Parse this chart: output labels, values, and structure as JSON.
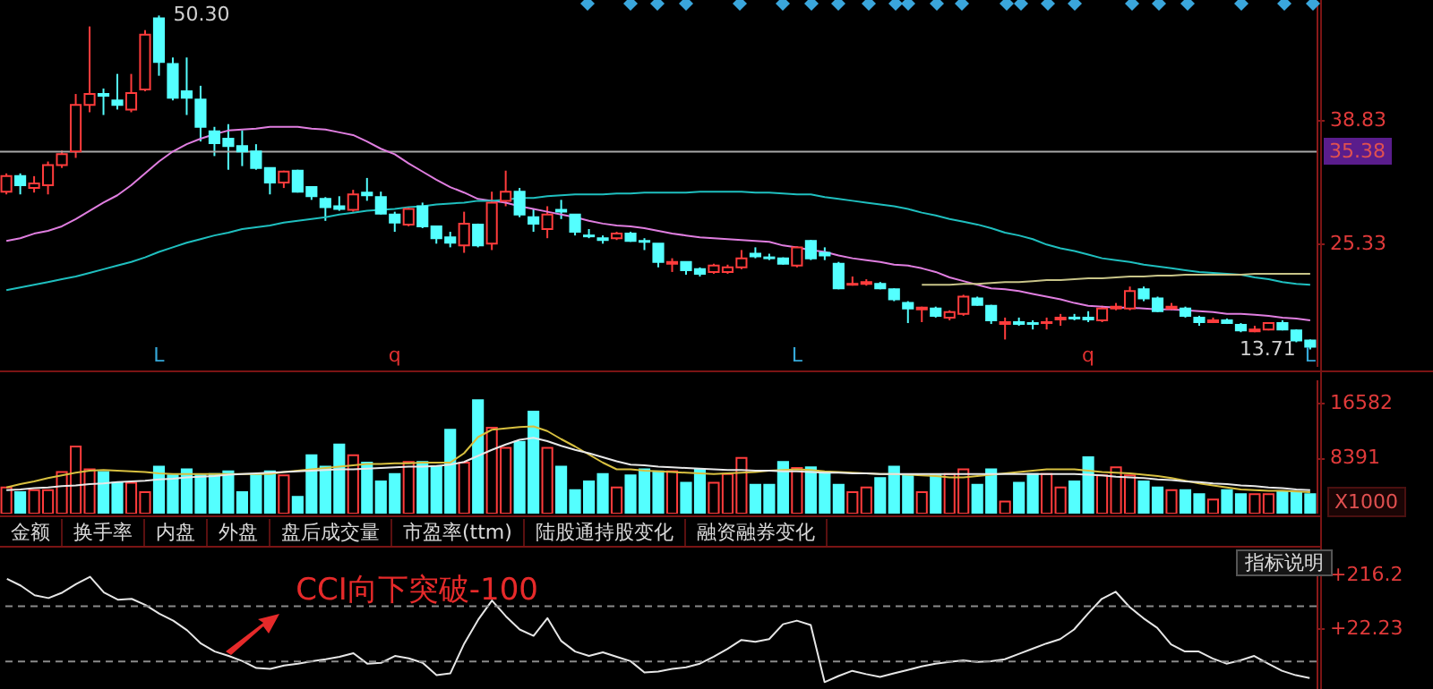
{
  "chart_data": [
    {
      "type": "candlestick",
      "ylim": [
        11.8,
        52.0
      ],
      "yticks": [
        25.33,
        38.83
      ],
      "tick_labels": "y",
      "categories": [
        null,
        null,
        null,
        null,
        null,
        null,
        null,
        null,
        null,
        null,
        null,
        null,
        null,
        null,
        null,
        null,
        null,
        null,
        null,
        null,
        null,
        null,
        null,
        null,
        null,
        null,
        null,
        null,
        null,
        null,
        null,
        null,
        null,
        null,
        null,
        null,
        null,
        null,
        null,
        null,
        null,
        null,
        null,
        null,
        null,
        null,
        null,
        null,
        null,
        null,
        null,
        null,
        null,
        null,
        null,
        null,
        null,
        null,
        null,
        null,
        null,
        null,
        null,
        null,
        null,
        null,
        null,
        null,
        null,
        null,
        null,
        null,
        null,
        null,
        null,
        null,
        null,
        null,
        null,
        null,
        null,
        null,
        null,
        null,
        null,
        null,
        null,
        null,
        null,
        null,
        null,
        null,
        null,
        null,
        null
      ],
      "ohlc": [
        [
          31.0,
          33.0,
          30.7,
          32.7
        ],
        [
          32.7,
          33.0,
          30.7,
          31.7
        ],
        [
          31.4,
          32.7,
          30.9,
          31.9
        ],
        [
          31.7,
          34.3,
          30.7,
          33.9
        ],
        [
          33.9,
          35.5,
          33.6,
          35.1
        ],
        [
          35.4,
          41.7,
          34.7,
          40.5
        ],
        [
          40.5,
          49.1,
          39.7,
          41.7
        ],
        [
          41.7,
          42.3,
          39.4,
          41.5
        ],
        [
          41.0,
          43.9,
          40.0,
          40.5
        ],
        [
          40.0,
          43.9,
          39.7,
          41.8
        ],
        [
          42.2,
          48.7,
          42.0,
          48.2
        ],
        [
          50.0,
          50.3,
          43.7,
          45.2
        ],
        [
          45.0,
          45.7,
          41.0,
          41.3
        ],
        [
          42.0,
          45.7,
          39.4,
          41.3
        ],
        [
          41.1,
          42.6,
          36.5,
          38.1
        ],
        [
          37.6,
          38.1,
          34.9,
          36.3
        ],
        [
          36.8,
          38.4,
          33.4,
          36.0
        ],
        [
          36.0,
          37.7,
          33.8,
          35.4
        ],
        [
          35.4,
          36.2,
          33.4,
          33.6
        ],
        [
          33.6,
          33.6,
          30.7,
          32.0
        ],
        [
          32.0,
          33.3,
          31.4,
          33.2
        ],
        [
          33.3,
          33.4,
          30.9,
          31.0
        ],
        [
          31.5,
          31.5,
          30.1,
          30.5
        ],
        [
          30.2,
          30.4,
          27.8,
          29.3
        ],
        [
          29.4,
          30.5,
          28.9,
          29.1
        ],
        [
          29.0,
          31.2,
          28.8,
          30.7
        ],
        [
          30.9,
          32.5,
          30.0,
          30.6
        ],
        [
          30.4,
          31.0,
          28.5,
          28.6
        ],
        [
          28.5,
          28.8,
          26.6,
          27.6
        ],
        [
          27.4,
          29.3,
          27.2,
          29.1
        ],
        [
          29.4,
          29.8,
          27.0,
          27.2
        ],
        [
          27.2,
          27.2,
          25.3,
          25.9
        ],
        [
          26.0,
          26.6,
          24.9,
          25.4
        ],
        [
          25.1,
          28.8,
          24.3,
          27.5
        ],
        [
          27.4,
          27.5,
          24.9,
          25.1
        ],
        [
          25.3,
          31.0,
          24.6,
          29.8
        ],
        [
          30.0,
          33.3,
          29.4,
          31.0
        ],
        [
          31.0,
          31.4,
          28.2,
          28.5
        ],
        [
          28.2,
          29.1,
          26.6,
          27.5
        ],
        [
          26.9,
          29.4,
          25.9,
          28.5
        ],
        [
          29.0,
          30.1,
          28.0,
          28.8
        ],
        [
          28.5,
          28.5,
          26.2,
          26.6
        ],
        [
          26.2,
          26.9,
          25.9,
          26.1
        ],
        [
          25.9,
          26.2,
          25.3,
          25.7
        ],
        [
          25.9,
          26.6,
          25.7,
          26.4
        ],
        [
          26.4,
          26.6,
          25.5,
          25.6
        ],
        [
          25.6,
          25.9,
          24.6,
          25.5
        ],
        [
          25.3,
          25.3,
          22.7,
          23.3
        ],
        [
          23.1,
          23.7,
          22.2,
          23.3
        ],
        [
          23.3,
          23.3,
          21.9,
          22.4
        ],
        [
          22.5,
          22.7,
          21.7,
          22.0
        ],
        [
          22.2,
          23.1,
          22.0,
          22.9
        ],
        [
          22.2,
          23.0,
          22.0,
          22.7
        ],
        [
          22.7,
          24.6,
          22.5,
          23.7
        ],
        [
          24.2,
          24.9,
          23.7,
          23.9
        ],
        [
          23.8,
          24.2,
          23.5,
          23.7
        ],
        [
          23.7,
          23.8,
          23.0,
          23.1
        ],
        [
          22.9,
          25.0,
          22.7,
          24.9
        ],
        [
          25.6,
          25.7,
          23.5,
          23.7
        ],
        [
          24.3,
          24.9,
          23.5,
          24.0
        ],
        [
          23.1,
          23.3,
          20.3,
          20.4
        ],
        [
          20.8,
          21.7,
          20.7,
          20.9
        ],
        [
          20.9,
          21.4,
          20.7,
          21.1
        ],
        [
          20.9,
          21.1,
          20.3,
          20.4
        ],
        [
          20.3,
          20.4,
          19.0,
          19.2
        ],
        [
          18.8,
          19.0,
          16.6,
          18.2
        ],
        [
          18.1,
          18.4,
          16.7,
          18.3
        ],
        [
          18.2,
          18.4,
          17.2,
          17.4
        ],
        [
          17.2,
          18.0,
          16.9,
          17.8
        ],
        [
          17.6,
          19.7,
          17.4,
          19.5
        ],
        [
          19.3,
          19.5,
          18.5,
          18.6
        ],
        [
          18.5,
          18.6,
          16.5,
          16.9
        ],
        [
          16.5,
          17.2,
          14.8,
          16.7
        ],
        [
          16.7,
          17.2,
          16.3,
          16.5
        ],
        [
          16.6,
          16.9,
          15.9,
          16.5
        ],
        [
          16.6,
          17.2,
          15.9,
          16.7
        ],
        [
          17.0,
          17.6,
          16.3,
          17.2
        ],
        [
          17.2,
          17.6,
          16.9,
          17.1
        ],
        [
          17.2,
          17.9,
          16.7,
          17.0
        ],
        [
          16.9,
          18.5,
          16.7,
          18.2
        ],
        [
          18.2,
          18.8,
          18.0,
          18.4
        ],
        [
          18.2,
          20.6,
          18.0,
          20.1
        ],
        [
          20.3,
          20.6,
          19.0,
          19.3
        ],
        [
          19.3,
          19.5,
          17.8,
          17.9
        ],
        [
          18.2,
          18.8,
          18.0,
          18.4
        ],
        [
          18.2,
          18.4,
          17.2,
          17.4
        ],
        [
          17.2,
          17.4,
          16.3,
          16.7
        ],
        [
          16.7,
          17.2,
          16.6,
          16.9
        ],
        [
          16.9,
          17.1,
          16.5,
          16.6
        ],
        [
          16.4,
          16.6,
          15.6,
          15.8
        ],
        [
          15.7,
          16.3,
          15.6,
          15.9
        ],
        [
          15.9,
          16.7,
          15.8,
          16.6
        ],
        [
          16.6,
          16.9,
          15.8,
          15.9
        ],
        [
          15.8,
          15.9,
          14.5,
          14.7
        ],
        [
          14.7,
          14.8,
          13.71,
          14.0
        ]
      ],
      "colors": [
        "#ff3c3c",
        "#54ffff",
        "#ff3c3c",
        "#ff3c3c",
        "#ff3c3c",
        "#ff3c3c",
        "#ff3c3c",
        "#54ffff",
        "#54ffff",
        "#ff3c3c",
        "#ff3c3c",
        "#54ffff",
        "#54ffff",
        "#54ffff",
        "#54ffff",
        "#54ffff",
        "#54ffff",
        "#54ffff",
        "#54ffff",
        "#54ffff",
        "#ff3c3c",
        "#54ffff",
        "#54ffff",
        "#54ffff",
        "#54ffff",
        "#ff3c3c",
        "#54ffff",
        "#54ffff",
        "#54ffff",
        "#ff3c3c",
        "#54ffff",
        "#54ffff",
        "#54ffff",
        "#ff3c3c",
        "#54ffff",
        "#ff3c3c",
        "#ff3c3c",
        "#54ffff",
        "#54ffff",
        "#ff3c3c",
        "#54ffff",
        "#54ffff",
        "#54ffff",
        "#54ffff",
        "#ff3c3c",
        "#54ffff",
        "#54ffff",
        "#54ffff",
        "#ff3c3c",
        "#54ffff",
        "#54ffff",
        "#ff3c3c",
        "#ff3c3c",
        "#ff3c3c",
        "#54ffff",
        "#54ffff",
        "#54ffff",
        "#ff3c3c",
        "#54ffff",
        "#54ffff",
        "#54ffff",
        "#ff3c3c",
        "#ff3c3c",
        "#54ffff",
        "#54ffff",
        "#54ffff",
        "#ff3c3c",
        "#54ffff",
        "#ff3c3c",
        "#ff3c3c",
        "#54ffff",
        "#54ffff",
        "#ff3c3c",
        "#54ffff",
        "#54ffff",
        "#ff3c3c",
        "#ff3c3c",
        "#54ffff",
        "#54ffff",
        "#ff3c3c",
        "#ff3c3c",
        "#ff3c3c",
        "#54ffff",
        "#54ffff",
        "#ff3c3c",
        "#54ffff",
        "#54ffff",
        "#ff3c3c",
        "#54ffff",
        "#54ffff",
        "#ff3c3c",
        "#ff3c3c",
        "#54ffff",
        "#54ffff",
        "#54ffff"
      ],
      "series": [
        {
          "type": "line",
          "color": "#e07ee0",
          "values": [
            25.6,
            25.9,
            26.4,
            26.7,
            27.2,
            28.0,
            28.9,
            29.8,
            30.6,
            31.7,
            33.0,
            34.3,
            35.4,
            36.2,
            36.8,
            37.3,
            37.7,
            37.8,
            37.9,
            38.1,
            38.1,
            38.1,
            37.9,
            37.8,
            37.5,
            37.2,
            36.5,
            35.7,
            35.1,
            34.1,
            33.2,
            32.3,
            31.5,
            30.9,
            30.2,
            30.0,
            29.8,
            29.4,
            29.1,
            28.8,
            28.5,
            28.2,
            27.8,
            27.5,
            27.3,
            27.2,
            27.0,
            26.7,
            26.4,
            26.2,
            26.0,
            25.9,
            25.8,
            25.7,
            25.6,
            25.5,
            25.1,
            24.9,
            24.6,
            24.4,
            24.0,
            23.7,
            23.5,
            23.3,
            23.0,
            22.9,
            22.6,
            22.2,
            21.6,
            21.2,
            20.8,
            20.4,
            20.3,
            20.1,
            19.8,
            19.5,
            19.2,
            18.8,
            18.5,
            18.4,
            18.3,
            18.3,
            18.2,
            18.1,
            18.1,
            18.0,
            17.9,
            17.8,
            17.6,
            17.6,
            17.5,
            17.4,
            17.2,
            17.1,
            16.9
          ]
        },
        {
          "type": "line",
          "color": "#1fbfbf",
          "values": [
            20.2,
            20.5,
            20.8,
            21.1,
            21.4,
            21.7,
            22.1,
            22.5,
            22.9,
            23.3,
            23.8,
            24.4,
            24.9,
            25.4,
            25.8,
            26.2,
            26.5,
            26.9,
            27.1,
            27.3,
            27.6,
            27.8,
            28.0,
            28.2,
            28.5,
            28.7,
            28.9,
            29.0,
            29.1,
            29.3,
            29.4,
            29.6,
            29.7,
            29.8,
            30.0,
            30.0,
            30.1,
            30.3,
            30.3,
            30.5,
            30.6,
            30.7,
            30.7,
            30.7,
            30.8,
            30.8,
            30.9,
            30.9,
            30.9,
            30.9,
            31.0,
            31.0,
            31.0,
            31.0,
            30.9,
            30.9,
            30.8,
            30.7,
            30.7,
            30.4,
            30.2,
            30.0,
            29.8,
            29.6,
            29.4,
            29.1,
            28.7,
            28.4,
            28.0,
            27.7,
            27.4,
            27.0,
            26.5,
            26.2,
            25.8,
            25.2,
            24.8,
            24.5,
            24.1,
            23.7,
            23.5,
            23.3,
            23.0,
            22.8,
            22.6,
            22.4,
            22.2,
            22.1,
            22.0,
            21.9,
            21.6,
            21.4,
            21.1,
            20.9,
            20.8
          ]
        },
        {
          "type": "line",
          "color": "#c8c488",
          "values": [
            null,
            null,
            null,
            null,
            null,
            null,
            null,
            null,
            null,
            null,
            null,
            null,
            null,
            null,
            null,
            null,
            null,
            null,
            null,
            null,
            null,
            null,
            null,
            null,
            null,
            null,
            null,
            null,
            null,
            null,
            null,
            null,
            null,
            null,
            null,
            null,
            null,
            null,
            null,
            null,
            null,
            null,
            null,
            null,
            null,
            null,
            null,
            null,
            null,
            null,
            null,
            null,
            null,
            null,
            null,
            null,
            null,
            null,
            null,
            null,
            null,
            null,
            null,
            null,
            null,
            null,
            20.8,
            20.8,
            20.8,
            20.9,
            20.9,
            21.0,
            21.1,
            21.1,
            21.2,
            21.3,
            21.3,
            21.4,
            21.5,
            21.5,
            21.6,
            21.7,
            21.7,
            21.8,
            21.8,
            21.9,
            21.9,
            21.9,
            21.9,
            21.9,
            22.0,
            22.0,
            22.0,
            22.0,
            22.0
          ]
        }
      ],
      "ref_lines": [
        {
          "axis": "y",
          "value": 35.38,
          "label": "35.38",
          "color": "#a8a8a8"
        }
      ],
      "annotations": [
        "50.30",
        "13.71",
        "L",
        "q",
        "L",
        "q",
        "L"
      ]
    },
    {
      "type": "bar",
      "ylim": [
        0,
        20000
      ],
      "yticks": [
        8391,
        16582
      ],
      "ylabel": "X1000",
      "tick_labels": "y",
      "categories": [
        null,
        null,
        null,
        null,
        null,
        null,
        null,
        null,
        null,
        null,
        null,
        null,
        null,
        null,
        null,
        null,
        null,
        null,
        null,
        null,
        null,
        null,
        null,
        null,
        null,
        null,
        null,
        null,
        null,
        null,
        null,
        null,
        null,
        null,
        null,
        null,
        null,
        null,
        null,
        null,
        null,
        null,
        null,
        null,
        null,
        null,
        null,
        null,
        null,
        null,
        null,
        null,
        null,
        null,
        null,
        null,
        null,
        null,
        null,
        null,
        null,
        null,
        null,
        null,
        null,
        null,
        null,
        null,
        null,
        null,
        null,
        null,
        null,
        null,
        null,
        null,
        null,
        null,
        null,
        null,
        null,
        null,
        null,
        null,
        null,
        null,
        null,
        null,
        null,
        null,
        null,
        null,
        null,
        null,
        null
      ],
      "values": [
        3900,
        3200,
        3500,
        3500,
        6200,
        10000,
        6600,
        6200,
        4600,
        4600,
        3200,
        7000,
        5700,
        6600,
        5700,
        5900,
        6300,
        3200,
        5900,
        6300,
        5700,
        2500,
        8700,
        7000,
        10300,
        8700,
        7600,
        4800,
        5900,
        7700,
        7700,
        7000,
        12500,
        7600,
        16900,
        12800,
        9800,
        10700,
        15200,
        9800,
        7000,
        3500,
        4800,
        5900,
        3900,
        5700,
        6600,
        6300,
        6300,
        4600,
        6600,
        4600,
        5900,
        8300,
        4300,
        4300,
        7700,
        6800,
        6900,
        6200,
        4300,
        3200,
        3900,
        5300,
        7000,
        5700,
        3200,
        5700,
        5900,
        6600,
        4300,
        6600,
        1800,
        4600,
        5900,
        5900,
        3900,
        4800,
        8400,
        5700,
        6900,
        5700,
        4800,
        3900,
        3500,
        3500,
        2900,
        2100,
        3500,
        2900,
        2900,
        2900,
        3200,
        3200,
        2900
      ],
      "colors": [
        "#ff3c3c",
        "#54ffff",
        "#ff3c3c",
        "#ff3c3c",
        "#ff3c3c",
        "#ff3c3c",
        "#ff3c3c",
        "#54ffff",
        "#54ffff",
        "#ff3c3c",
        "#ff3c3c",
        "#54ffff",
        "#54ffff",
        "#54ffff",
        "#54ffff",
        "#54ffff",
        "#54ffff",
        "#54ffff",
        "#54ffff",
        "#54ffff",
        "#ff3c3c",
        "#54ffff",
        "#54ffff",
        "#54ffff",
        "#54ffff",
        "#ff3c3c",
        "#54ffff",
        "#54ffff",
        "#54ffff",
        "#ff3c3c",
        "#54ffff",
        "#54ffff",
        "#54ffff",
        "#ff3c3c",
        "#54ffff",
        "#ff3c3c",
        "#ff3c3c",
        "#54ffff",
        "#54ffff",
        "#ff3c3c",
        "#54ffff",
        "#54ffff",
        "#54ffff",
        "#54ffff",
        "#ff3c3c",
        "#54ffff",
        "#54ffff",
        "#54ffff",
        "#ff3c3c",
        "#54ffff",
        "#54ffff",
        "#ff3c3c",
        "#ff3c3c",
        "#ff3c3c",
        "#54ffff",
        "#54ffff",
        "#54ffff",
        "#ff3c3c",
        "#54ffff",
        "#54ffff",
        "#54ffff",
        "#ff3c3c",
        "#ff3c3c",
        "#54ffff",
        "#54ffff",
        "#54ffff",
        "#ff3c3c",
        "#54ffff",
        "#ff3c3c",
        "#ff3c3c",
        "#54ffff",
        "#54ffff",
        "#ff3c3c",
        "#54ffff",
        "#54ffff",
        "#ff3c3c",
        "#ff3c3c",
        "#54ffff",
        "#54ffff",
        "#ff3c3c",
        "#ff3c3c",
        "#ff3c3c",
        "#54ffff",
        "#54ffff",
        "#ff3c3c",
        "#54ffff",
        "#54ffff",
        "#ff3c3c",
        "#54ffff",
        "#54ffff",
        "#ff3c3c",
        "#ff3c3c",
        "#54ffff",
        "#54ffff",
        "#54ffff"
      ],
      "series": [
        {
          "type": "line",
          "color": "#d8c040",
          "values": [
            3900,
            4400,
            4800,
            5300,
            5700,
            6100,
            6400,
            6500,
            6400,
            6300,
            6200,
            6000,
            5900,
            5900,
            5900,
            5900,
            5900,
            5900,
            5900,
            5900,
            6200,
            6400,
            6600,
            6800,
            7000,
            7200,
            7400,
            7400,
            7500,
            7500,
            7600,
            7600,
            7600,
            9000,
            11400,
            12500,
            12700,
            12900,
            13000,
            12300,
            11100,
            10000,
            8800,
            7600,
            6600,
            6600,
            6400,
            6300,
            6200,
            6100,
            6000,
            5900,
            6000,
            6100,
            6200,
            6400,
            6500,
            6600,
            6500,
            6300,
            6200,
            6100,
            6000,
            5900,
            5900,
            5800,
            5700,
            5600,
            5400,
            5400,
            5600,
            5800,
            6000,
            6200,
            6400,
            6600,
            6600,
            6600,
            6400,
            6200,
            6100,
            6000,
            5800,
            5600,
            5300,
            4900,
            4500,
            4200,
            3900,
            3600,
            3500,
            3400,
            3400,
            3300,
            3200
          ]
        },
        {
          "type": "line",
          "color": "#e8e8e8",
          "values": [
            3500,
            3600,
            3800,
            3900,
            4100,
            4200,
            4400,
            4500,
            4700,
            4800,
            4900,
            5100,
            5200,
            5400,
            5500,
            5600,
            5800,
            5900,
            6000,
            6100,
            6200,
            6300,
            6400,
            6500,
            6600,
            6600,
            6700,
            6800,
            6900,
            7000,
            7000,
            7100,
            7300,
            7700,
            8600,
            9500,
            10300,
            11000,
            11300,
            10800,
            10100,
            9500,
            9000,
            8400,
            7800,
            7300,
            7200,
            7000,
            6900,
            6800,
            6700,
            6600,
            6500,
            6500,
            6400,
            6400,
            6300,
            6300,
            6200,
            6100,
            6100,
            6000,
            6000,
            5900,
            5900,
            5900,
            5900,
            5900,
            5900,
            5900,
            5900,
            5900,
            5900,
            5900,
            5900,
            5900,
            5900,
            5900,
            5800,
            5700,
            5500,
            5400,
            5300,
            5100,
            5000,
            4800,
            4700,
            4500,
            4400,
            4200,
            4100,
            3900,
            3800,
            3600,
            3500
          ]
        }
      ]
    },
    {
      "type": "line",
      "ylim": [
        -200,
        300
      ],
      "yticks": [
        {
          "value": 22.23,
          "label": "+22.23"
        },
        {
          "value": 216.2,
          "label": "+216.2"
        }
      ],
      "tick_labels": "y",
      "categories": [
        null,
        null,
        null,
        null,
        null,
        null,
        null,
        null,
        null,
        null,
        null,
        null,
        null,
        null,
        null,
        null,
        null,
        null,
        null,
        null,
        null,
        null,
        null,
        null,
        null,
        null,
        null,
        null,
        null,
        null,
        null,
        null,
        null,
        null,
        null,
        null,
        null,
        null,
        null,
        null,
        null,
        null,
        null,
        null,
        null,
        null,
        null,
        null,
        null,
        null,
        null,
        null,
        null,
        null,
        null,
        null,
        null,
        null,
        null,
        null,
        null,
        null,
        null,
        null,
        null,
        null,
        null,
        null,
        null,
        null,
        null,
        null,
        null,
        null,
        null,
        null,
        null,
        null,
        null,
        null,
        null,
        null,
        null,
        null,
        null,
        null,
        null,
        null,
        null,
        null,
        null,
        null,
        null,
        null,
        null
      ],
      "series": [
        {
          "color": "#e6e6e6",
          "values": [
            200,
            175,
            140,
            130,
            150,
            181,
            207,
            150,
            124,
            127,
            105,
            73,
            48,
            13,
            -35,
            -64,
            -80,
            -99,
            -124,
            -127,
            -115,
            -108,
            -99,
            -92,
            -83,
            -70,
            -108,
            -105,
            -80,
            -89,
            -105,
            -150,
            -143,
            -35,
            51,
            121,
            64,
            16,
            -7,
            57,
            -26,
            -64,
            -80,
            -67,
            -83,
            -99,
            -140,
            -137,
            -127,
            -121,
            -108,
            -83,
            -54,
            -22,
            -29,
            -19,
            35,
            48,
            32,
            -175,
            -153,
            -134,
            -146,
            -156,
            -143,
            -131,
            -118,
            -108,
            -102,
            -96,
            -102,
            -99,
            -92,
            -73,
            -54,
            -35,
            -19,
            16,
            73,
            127,
            153,
            98,
            57,
            22,
            -38,
            -64,
            -64,
            -89,
            -108,
            -96,
            -80,
            -108,
            -134,
            -150,
            -160
          ]
        }
      ],
      "ref_lines": [
        {
          "axis": "y",
          "value": 100,
          "color": "#8a8a8a",
          "line_style": "dashed"
        },
        {
          "axis": "y",
          "value": -100,
          "color": "#8a8a8a",
          "line_style": "dashed"
        }
      ],
      "annotations": [
        {
          "text": "CCI向下突破-100",
          "y": -100
        },
        "金额",
        "换手率",
        "内盘",
        "外盘",
        "盘后成交量",
        "市盈率(ttm)",
        "陆股通持股变化",
        "融资融券变化",
        "指标说明"
      ]
    }
  ]
}
